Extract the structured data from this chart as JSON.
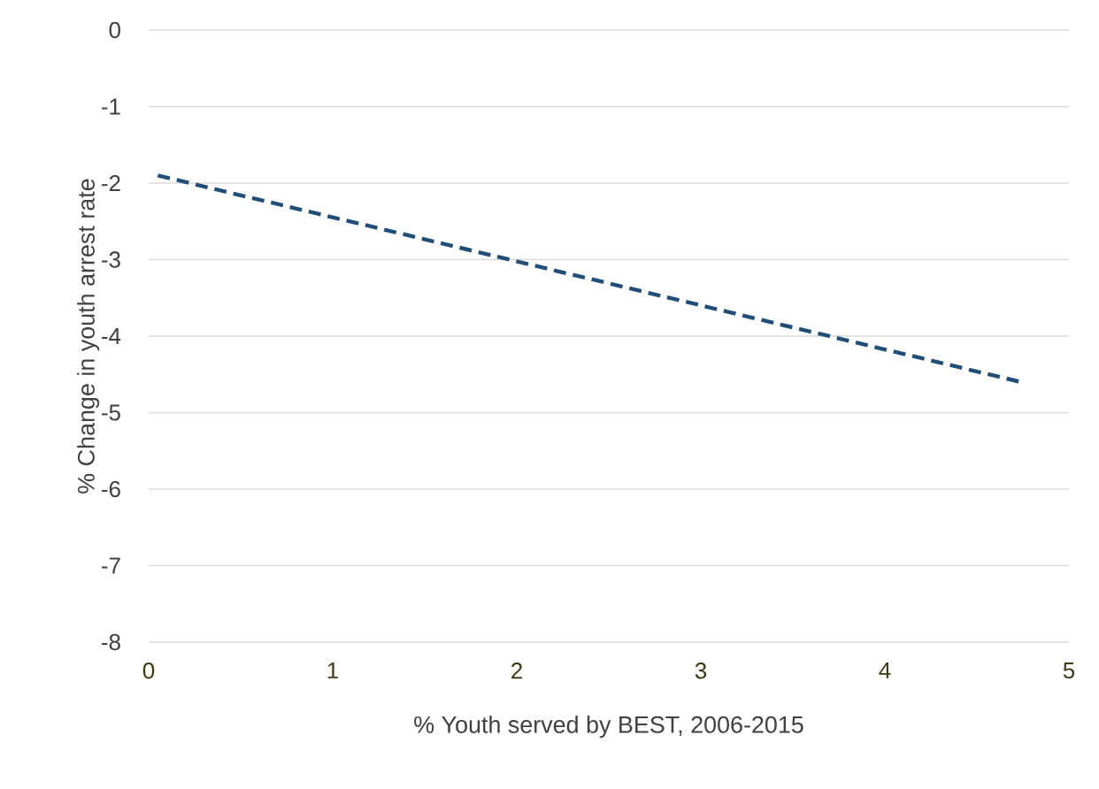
{
  "chart_data": {
    "type": "line",
    "xlabel": "% Youth served by BEST, 2006-2015",
    "ylabel": "% Change in youth arrest rate",
    "series": [
      {
        "color": "#1f4e79",
        "x": [
          0.05,
          4.74
        ],
        "values": [
          -1.9,
          -4.6
        ],
        "line_style": "dashed"
      }
    ],
    "xlim": [
      0,
      5
    ],
    "ylim": [
      -8,
      0
    ],
    "xticks": [
      0,
      1,
      2,
      3,
      4,
      5
    ],
    "yticks": [
      -8,
      -7,
      -6,
      -5,
      -4,
      -3,
      -2,
      -1,
      0
    ],
    "grid": "y",
    "marker": "none"
  }
}
